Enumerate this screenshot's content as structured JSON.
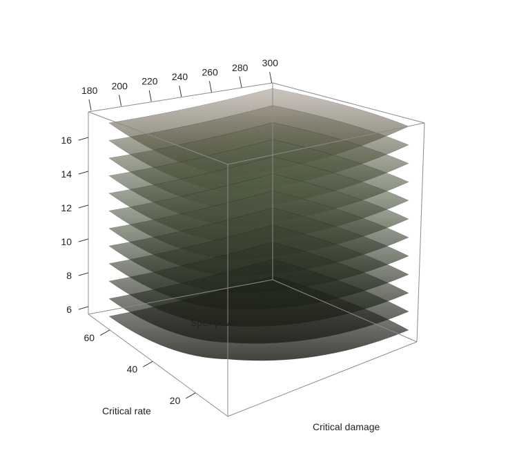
{
  "chart_data": {
    "type": "surface3d",
    "title": "",
    "axes": {
      "x": {
        "label": "Critical damage",
        "ticks": []
      },
      "y": {
        "label": "Critical rate",
        "ticks": [
          20,
          40,
          60
        ]
      },
      "z": {
        "label": "Spell power",
        "ticks": [
          180,
          200,
          220,
          240,
          260,
          280,
          300
        ]
      },
      "value": {
        "label": "",
        "ticks": [
          6,
          8,
          10,
          12,
          14,
          16
        ]
      }
    },
    "series": [
      {
        "level": 5
      },
      {
        "level": 6
      },
      {
        "level": 7
      },
      {
        "level": 8
      },
      {
        "level": 9
      },
      {
        "level": 10
      },
      {
        "level": 11
      },
      {
        "level": 12
      },
      {
        "level": 13
      },
      {
        "level": 14
      },
      {
        "level": 15
      },
      {
        "level": 16
      }
    ],
    "colors": {
      "low": "#000000",
      "mid": "#59654a",
      "high": "#6b5a48",
      "box": "#8a8a8a"
    }
  }
}
